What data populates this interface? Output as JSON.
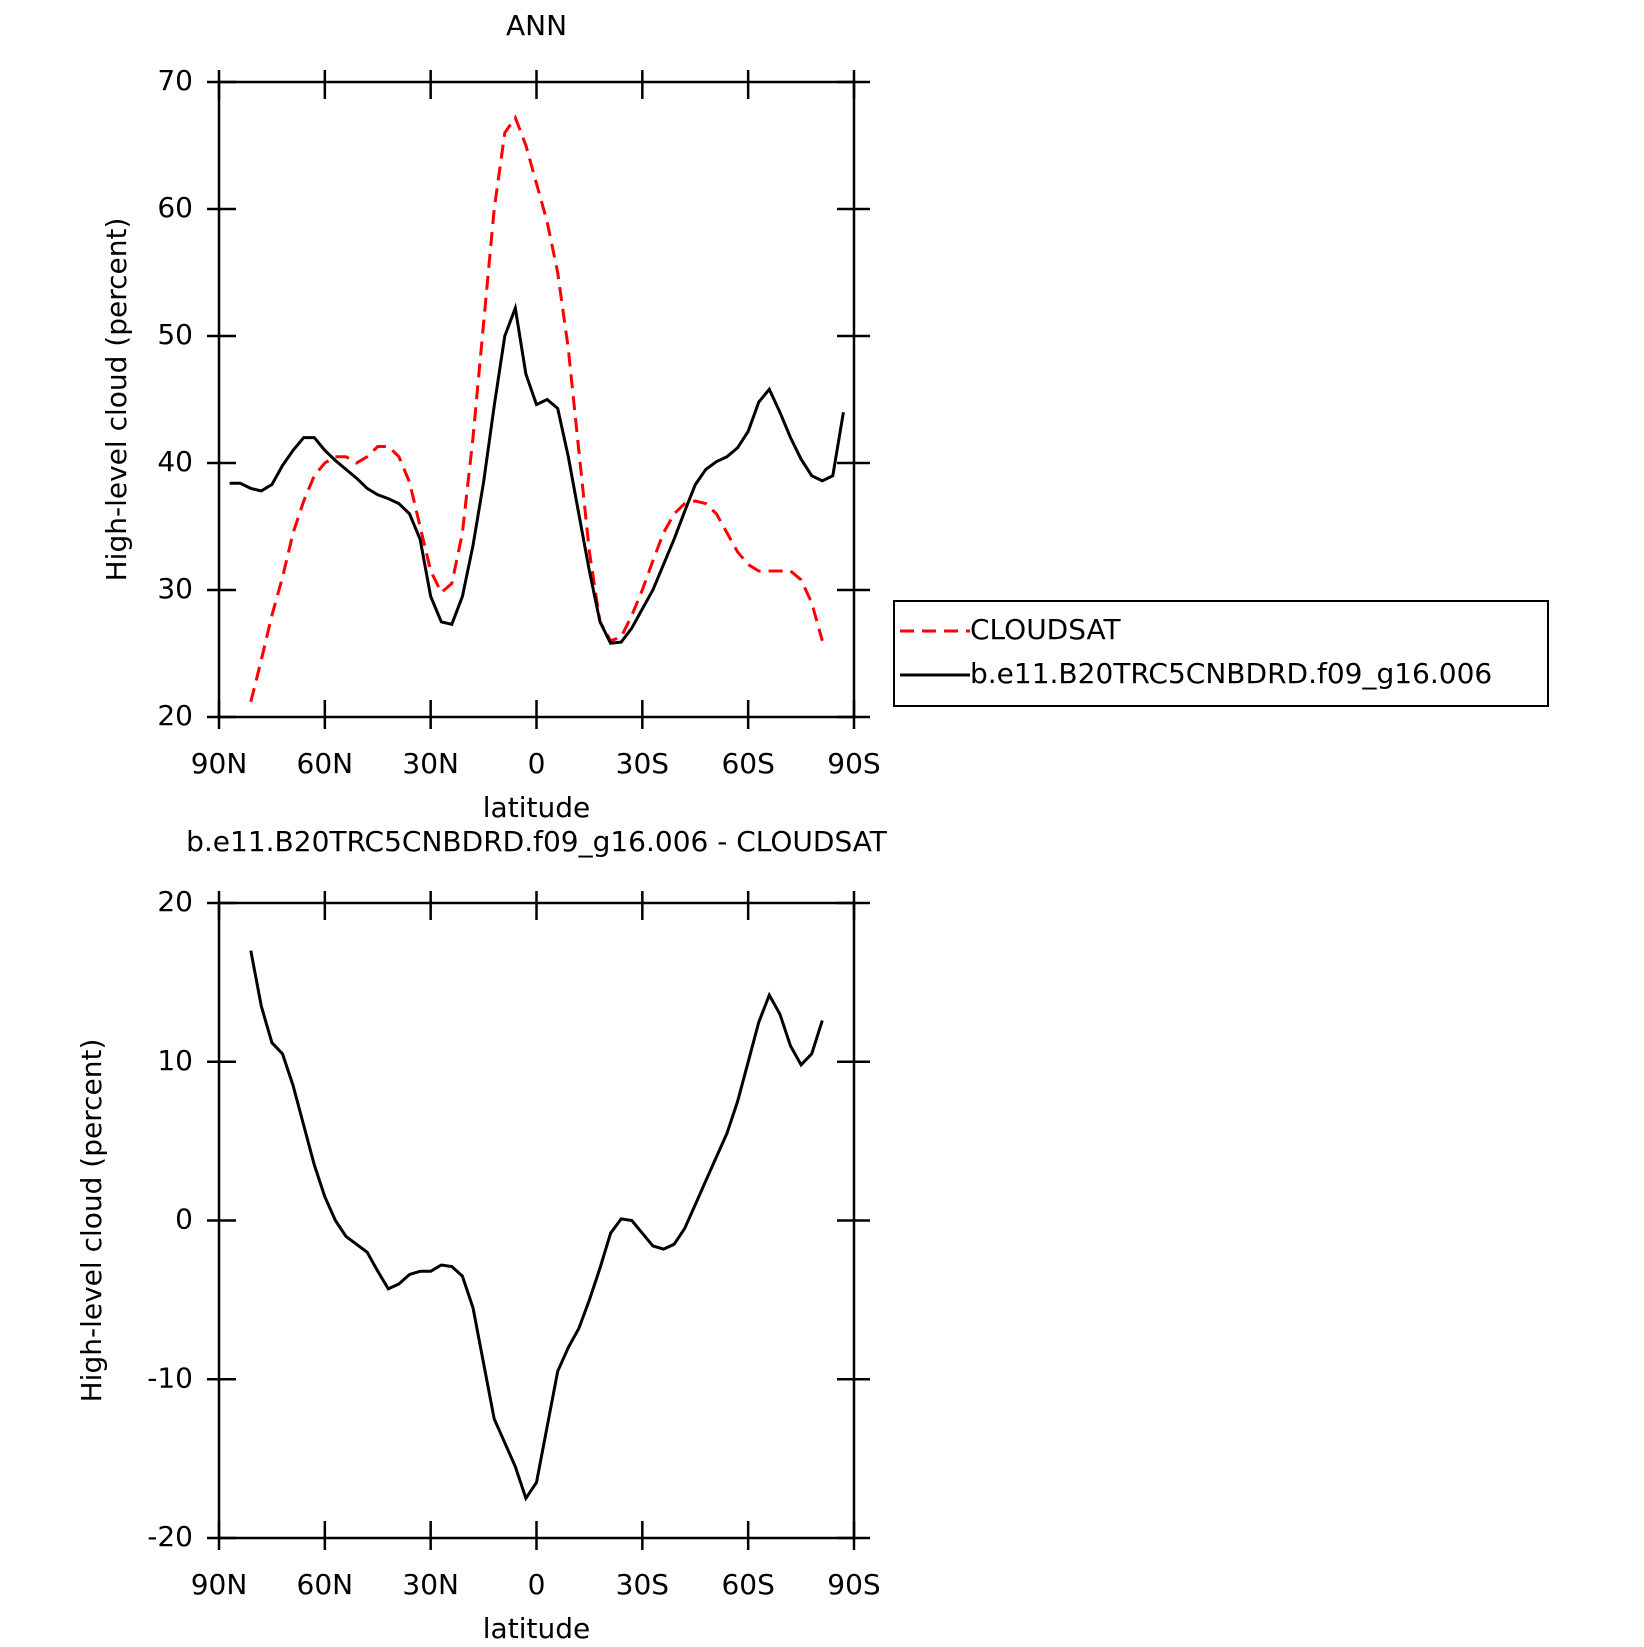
{
  "chart_data": [
    {
      "type": "line",
      "title": "ANN",
      "xlabel": "latitude",
      "ylabel": "High-level cloud (percent)",
      "x": [
        87,
        84,
        81,
        78,
        75,
        72,
        69,
        66,
        63,
        60,
        57,
        54,
        51,
        48,
        45,
        42,
        39,
        36,
        33,
        30,
        27,
        24,
        21,
        18,
        15,
        12,
        9,
        6,
        3,
        0,
        -3,
        -6,
        -9,
        -12,
        -15,
        -18,
        -21,
        -24,
        -27,
        -30,
        -33,
        -36,
        -39,
        -42,
        -45,
        -48,
        -51,
        -54,
        -57,
        -60,
        -63,
        -66,
        -69,
        -72,
        -75,
        -78,
        -81,
        -84,
        -87
      ],
      "series": [
        {
          "name": "CLOUDSAT",
          "color": "#ff0000",
          "linestyle": "dashed",
          "values": [
            null,
            null,
            21.2,
            24.5,
            28,
            31,
            34.5,
            37,
            39,
            40,
            40.5,
            40.5,
            40.0,
            40.5,
            41.3,
            41.3,
            40.5,
            38.5,
            35.0,
            31.5,
            29.8,
            30.5,
            34.5,
            42,
            51,
            60,
            66,
            67.2,
            65,
            62,
            59,
            55,
            49,
            41,
            33,
            27.5,
            26,
            26.3,
            28,
            30,
            32.3,
            34.5,
            36,
            36.8,
            37,
            36.8,
            36,
            34.5,
            33,
            32,
            31.5,
            31.5,
            31.5,
            31.5,
            30.8,
            29,
            26,
            null,
            null
          ]
        },
        {
          "name": "b.e11.B20TRC5CNBDRD.f09_g16.006",
          "color": "#000000",
          "linestyle": "solid",
          "values": [
            38.4,
            38.4,
            38.0,
            37.8,
            38.3,
            39.8,
            41.0,
            42.0,
            42.0,
            41.0,
            40.2,
            39.5,
            38.8,
            38.0,
            37.5,
            37.2,
            36.8,
            36.0,
            34.0,
            29.5,
            27.5,
            27.3,
            29.5,
            33.5,
            38.5,
            44.5,
            50.0,
            52.2,
            47.0,
            44.6,
            45.0,
            44.3,
            40.5,
            36.0,
            31.5,
            27.5,
            25.8,
            25.9,
            27.0,
            28.5,
            30.0,
            32.0,
            34.0,
            36.2,
            38.3,
            39.5,
            40.1,
            40.5,
            41.2,
            42.5,
            44.8,
            45.8,
            44.0,
            42.0,
            40.3,
            39.0,
            38.6,
            39.0,
            44.0
          ]
        }
      ],
      "xlim": [
        90,
        -90
      ],
      "xticks": [
        {
          "value": 90,
          "label": "90N"
        },
        {
          "value": 60,
          "label": "60N"
        },
        {
          "value": 30,
          "label": "30N"
        },
        0,
        {
          "value": -30,
          "label": "30S"
        },
        {
          "value": -60,
          "label": "60S"
        },
        {
          "value": -90,
          "label": "90S"
        }
      ],
      "ylim": [
        20,
        70
      ],
      "yticks": [
        20,
        30,
        40,
        50,
        60,
        70
      ],
      "legend": "outside-right"
    },
    {
      "type": "line",
      "title": "b.e11.B20TRC5CNBDRD.f09_g16.006 - CLOUDSAT",
      "xlabel": "latitude",
      "ylabel": "High-level cloud (percent)",
      "x": [
        87,
        84,
        81,
        78,
        75,
        72,
        69,
        66,
        63,
        60,
        57,
        54,
        51,
        48,
        45,
        42,
        39,
        36,
        33,
        30,
        27,
        24,
        21,
        18,
        15,
        12,
        9,
        6,
        3,
        0,
        -3,
        -6,
        -9,
        -12,
        -15,
        -18,
        -21,
        -24,
        -27,
        -30,
        -33,
        -36,
        -39,
        -42,
        -45,
        -48,
        -51,
        -54,
        -57,
        -60,
        -63,
        -66,
        -69,
        -72,
        -75,
        -78,
        -81,
        -84,
        -87
      ],
      "series": [
        {
          "color": "#000000",
          "linestyle": "solid",
          "values": [
            null,
            null,
            17,
            13.5,
            11.2,
            10.5,
            8.5,
            6,
            3.5,
            1.5,
            0,
            -1,
            -1.5,
            -2,
            -3.2,
            -4.3,
            -4.0,
            -3.4,
            -3.2,
            -3.2,
            -2.8,
            -2.9,
            -3.5,
            -5.5,
            -9,
            -12.5,
            -14,
            -15.5,
            -17.5,
            -16.5,
            -13,
            -9.5,
            -8,
            -6.8,
            -5,
            -3,
            -0.8,
            0.1,
            0,
            -0.8,
            -1.6,
            -1.8,
            -1.5,
            -0.5,
            1,
            2.5,
            4,
            5.5,
            7.5,
            10,
            12.5,
            14.2,
            13,
            11,
            9.8,
            10.5,
            12.6,
            null,
            null
          ]
        }
      ],
      "xlim": [
        90,
        -90
      ],
      "xticks": [
        {
          "value": 90,
          "label": "90N"
        },
        {
          "value": 60,
          "label": "60N"
        },
        {
          "value": 30,
          "label": "30N"
        },
        0,
        {
          "value": -30,
          "label": "30S"
        },
        {
          "value": -60,
          "label": "60S"
        },
        {
          "value": -90,
          "label": "90S"
        }
      ],
      "ylim": [
        -20,
        20
      ],
      "yticks": [
        -20,
        -10,
        0,
        10,
        20
      ]
    }
  ]
}
